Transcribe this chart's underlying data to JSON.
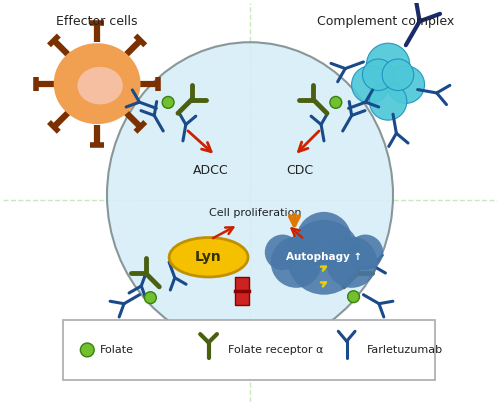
{
  "bg_color": "#ffffff",
  "cell_color": "#d6eef8",
  "cell_edge_color": "#7f8c8d",
  "effector_label": "Effector cells",
  "complement_label": "Complement complex",
  "adcc_label": "ADCC",
  "cdc_label": "CDC",
  "cell_prolif_label": "Cell proliferation",
  "autophagy_label": "Autophagy ↑",
  "lyn_label": "Lyn",
  "folate_label": "Folate",
  "folate_receptor_label": "Folate receptor α",
  "farletuzumab_label": "Farletuzumab",
  "dashed_line_color": "#c8e8c0",
  "arrow_color_red": "#cc2200",
  "arrow_color_orange": "#e07800",
  "effector_body_color": "#f0a050",
  "effector_inner_color": "#f9c8b8",
  "effector_spike_color": "#7b3000",
  "complement_color": "#4ec8d8",
  "antibody_color": "#1a4a8a",
  "receptor_color": "#4a6010",
  "folate_color": "#70c030",
  "lyn_fill": "#f5c000",
  "lyn_edge": "#c09000",
  "autophagy_fill": "#4878a8",
  "red_block_color": "#cc2222",
  "yellow_bolt": "#e8d000"
}
